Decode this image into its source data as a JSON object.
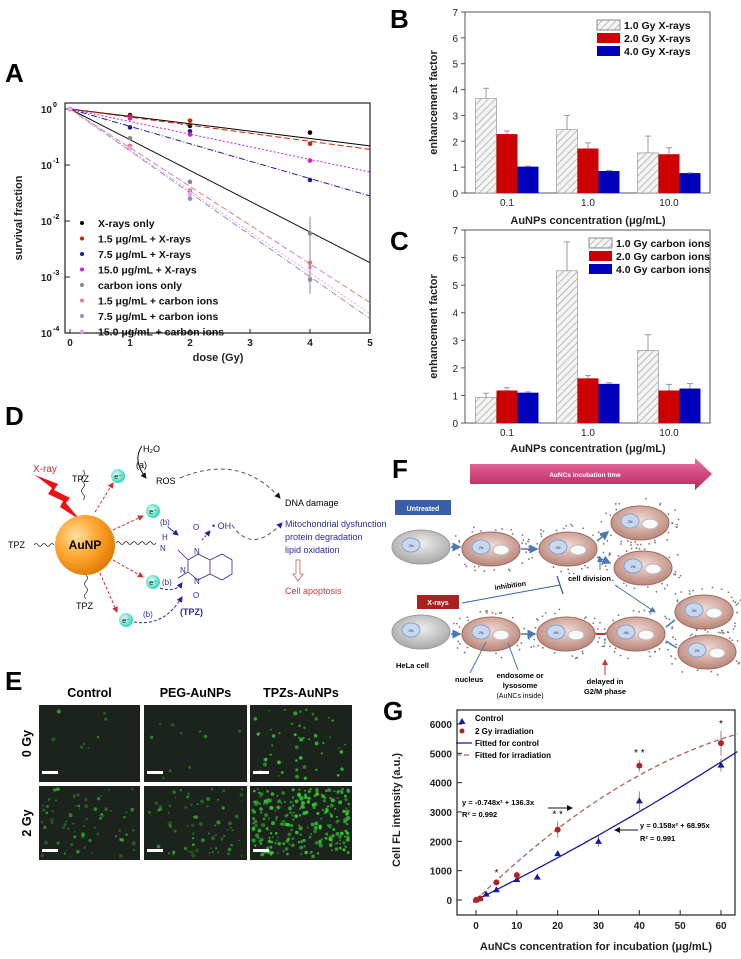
{
  "panels": {
    "A": {
      "label": "A"
    },
    "B": {
      "label": "B"
    },
    "C": {
      "label": "C"
    },
    "D": {
      "label": "D",
      "xray": "X-ray",
      "particle": "AuNP",
      "ligand": "TPZ",
      "electron": "e⁻",
      "water": "H₂O",
      "path_a": "(a)",
      "path_b": "(b)",
      "ros": "ROS",
      "hydroxyl": "• OH",
      "dna_damage": "DNA damage",
      "effects": [
        "Mitochondrial dysfunction",
        "protein degradation",
        "lipid oxidation"
      ],
      "apoptosis": "Cell apoptosis",
      "molecule_label": "(TPZ)",
      "atoms": {
        "H": "H",
        "N": "N",
        "O": "O"
      }
    },
    "E": {
      "label": "E",
      "columns": [
        "Control",
        "PEG-AuNPs",
        "TPZs-AuNPs"
      ],
      "rows": [
        "0 Gy",
        "2 Gy"
      ],
      "fluorescence_color": "#33cc33"
    },
    "F": {
      "label": "F",
      "time_arrow": "AuNCs incubation time",
      "untreated": "Untreated",
      "xrays": "X-rays",
      "inhibition": "inhibition",
      "cell_division": "cell division",
      "hela": "HeLa cell",
      "nucleus": "nucleus",
      "endosome": [
        "endosome or",
        "lysosome",
        "(AuNCs inside)"
      ],
      "delayed": [
        "delayed in",
        "G2/M phase"
      ],
      "ploidy": [
        "2N",
        "4N"
      ]
    },
    "G": {
      "label": "G"
    }
  },
  "chart_data": [
    {
      "panel": "A",
      "type": "scatter",
      "xlabel": "dose (Gy)",
      "ylabel": "survival fraction",
      "yscale": "log",
      "xlim": [
        0,
        5
      ],
      "ylim": [
        0.0001,
        1
      ],
      "xticks": [
        "0",
        "1",
        "2",
        "3",
        "4",
        "5"
      ],
      "yticks": [
        "10",
        "10",
        "10",
        "10",
        "10"
      ],
      "ytick_exponents": [
        "0",
        "-1",
        "-2",
        "-3",
        "-4"
      ],
      "legend_position": "bottom-left",
      "x": [
        0,
        1,
        2,
        4
      ],
      "series": [
        {
          "name": "X-rays only",
          "color": "#000000",
          "marker": "square",
          "line": "solid",
          "values": [
            1,
            0.78,
            0.5,
            0.38
          ],
          "fit_at_5": 0.22
        },
        {
          "name": "1.5 μg/mL + X-rays",
          "color": "#cc2200",
          "marker": "circle",
          "line": "dashed",
          "values": [
            1,
            0.75,
            0.62,
            0.24
          ],
          "fit_at_5": 0.19
        },
        {
          "name": "7.5 μg/mL + X-rays",
          "color": "#1a1aa0",
          "marker": "triangle",
          "line": "dashdot",
          "values": [
            1,
            0.47,
            0.4,
            0.054
          ],
          "fit_at_5": 0.028
        },
        {
          "name": "15.0 μg/mL + X-rays",
          "color": "#cc22cc",
          "marker": "diamond",
          "line": "dotted",
          "values": [
            1,
            0.68,
            0.35,
            0.12
          ],
          "fit_at_5": 0.075
        },
        {
          "name": "carbon ions only",
          "color": "#888888",
          "marker": "square",
          "line": "solid-black",
          "values": [
            1,
            0.3,
            0.05,
            0.006
          ],
          "fit_at_5": 0.0018
        },
        {
          "name": "1.5 μg/mL + carbon ions",
          "color": "#e08080",
          "marker": "circle",
          "line": "dashed",
          "values": [
            1,
            0.22,
            0.035,
            0.0018
          ],
          "fit_at_5": 0.00035
        },
        {
          "name": "7.5 μg/mL + carbon ions",
          "color": "#9090c0",
          "marker": "triangle",
          "line": "dashdot",
          "values": [
            1,
            0.2,
            0.025,
            0.0009
          ],
          "fit_at_5": 0.00018
        },
        {
          "name": "15.0 μg/mL + carbon ions",
          "color": "#f0a0f0",
          "marker": "diamond",
          "line": "dotted",
          "values": [
            1,
            0.2,
            0.03,
            0.0015
          ],
          "fit_at_5": 0.00022
        }
      ]
    },
    {
      "panel": "B",
      "type": "bar",
      "xlabel": "AuNPs concentration (μg/mL)",
      "ylabel": "enhancement factor",
      "ylim": [
        0,
        7
      ],
      "yticks": [
        "0",
        "1",
        "2",
        "3",
        "4",
        "5",
        "6",
        "7"
      ],
      "categories": [
        "0.1",
        "1.0",
        "10.0"
      ],
      "legend_position": "top-right",
      "series": [
        {
          "name": "1.0 Gy X-rays",
          "color": "hatched",
          "values": [
            3.65,
            2.45,
            1.55
          ],
          "errors": [
            0.4,
            0.55,
            0.65
          ]
        },
        {
          "name": "2.0 Gy X-rays",
          "color": "#cc0000",
          "values": [
            2.28,
            1.72,
            1.5
          ],
          "errors": [
            0.12,
            0.22,
            0.25
          ]
        },
        {
          "name": "4.0 Gy X-rays",
          "color": "#0000bb",
          "values": [
            1.02,
            0.85,
            0.77
          ],
          "errors": [
            0.02,
            0.02,
            0.01
          ]
        }
      ]
    },
    {
      "panel": "C",
      "type": "bar",
      "xlabel": "AuNPs concentration (μg/mL)",
      "ylabel": "enhancement factor",
      "ylim": [
        0,
        7
      ],
      "yticks": [
        "0",
        "1",
        "2",
        "3",
        "4",
        "5",
        "6",
        "7"
      ],
      "categories": [
        "0.1",
        "1.0",
        "10.0"
      ],
      "legend_position": "top-right",
      "series": [
        {
          "name": "1.0 Gy carbon ions",
          "color": "hatched",
          "values": [
            0.93,
            5.52,
            2.63
          ],
          "errors": [
            0.15,
            1.05,
            0.57
          ]
        },
        {
          "name": "2.0 Gy carbon ions",
          "color": "#cc0000",
          "values": [
            1.18,
            1.62,
            1.18
          ],
          "errors": [
            0.1,
            0.1,
            0.22
          ]
        },
        {
          "name": "4.0 Gy carbon ions",
          "color": "#0000bb",
          "values": [
            1.1,
            1.42,
            1.25
          ],
          "errors": [
            0.03,
            0.04,
            0.18
          ]
        }
      ]
    },
    {
      "panel": "G",
      "type": "scatter",
      "xlabel": "AuNCs concentration for incubation (μg/mL)",
      "ylabel": "Cell FL intensity (a.u.)",
      "xlim": [
        -5,
        64
      ],
      "ylim": [
        -500,
        6500
      ],
      "xticks": [
        "0",
        "10",
        "20",
        "30",
        "40",
        "50",
        "60"
      ],
      "yticks": [
        "0",
        "1000",
        "2000",
        "3000",
        "4000",
        "5000",
        "6000"
      ],
      "legend_position": "top-left",
      "series": [
        {
          "name": "Control",
          "color": "#1a1aa0",
          "marker": "triangle",
          "x": [
            0,
            1,
            2.5,
            5,
            10,
            15,
            20,
            30,
            40,
            60
          ],
          "values": [
            0,
            50,
            200,
            350,
            700,
            780,
            1580,
            2000,
            3380,
            4600
          ],
          "errors": [
            0,
            0,
            0,
            60,
            60,
            0,
            80,
            180,
            320,
            220
          ]
        },
        {
          "name": "2 Gy irradiation",
          "color": "#b22222",
          "marker": "circle",
          "x": [
            0,
            1,
            5,
            10,
            20,
            40,
            60
          ],
          "values": [
            0,
            50,
            600,
            850,
            2400,
            4580,
            5350
          ],
          "errors": [
            0,
            0,
            80,
            120,
            270,
            200,
            420
          ]
        },
        {
          "name": "Fitted for control",
          "color": "#1a1aa0",
          "line": "solid",
          "equation": "y = 0.158x² + 68.95x",
          "r2": "R² = 0.991",
          "coefficients": [
            0.158,
            68.95
          ]
        },
        {
          "name": "Fitted for irradiation",
          "color": "#b06060",
          "line": "dashed",
          "equation": "y = -0.748x² + 136.3x",
          "r2": "R² = 0.992",
          "coefficients": [
            -0.748,
            136.3
          ]
        }
      ],
      "significance": [
        {
          "x": 5,
          "mark": "*"
        },
        {
          "x": 20,
          "mark": "* *"
        },
        {
          "x": 40,
          "mark": "* *"
        },
        {
          "x": 60,
          "mark": "*"
        }
      ]
    }
  ]
}
